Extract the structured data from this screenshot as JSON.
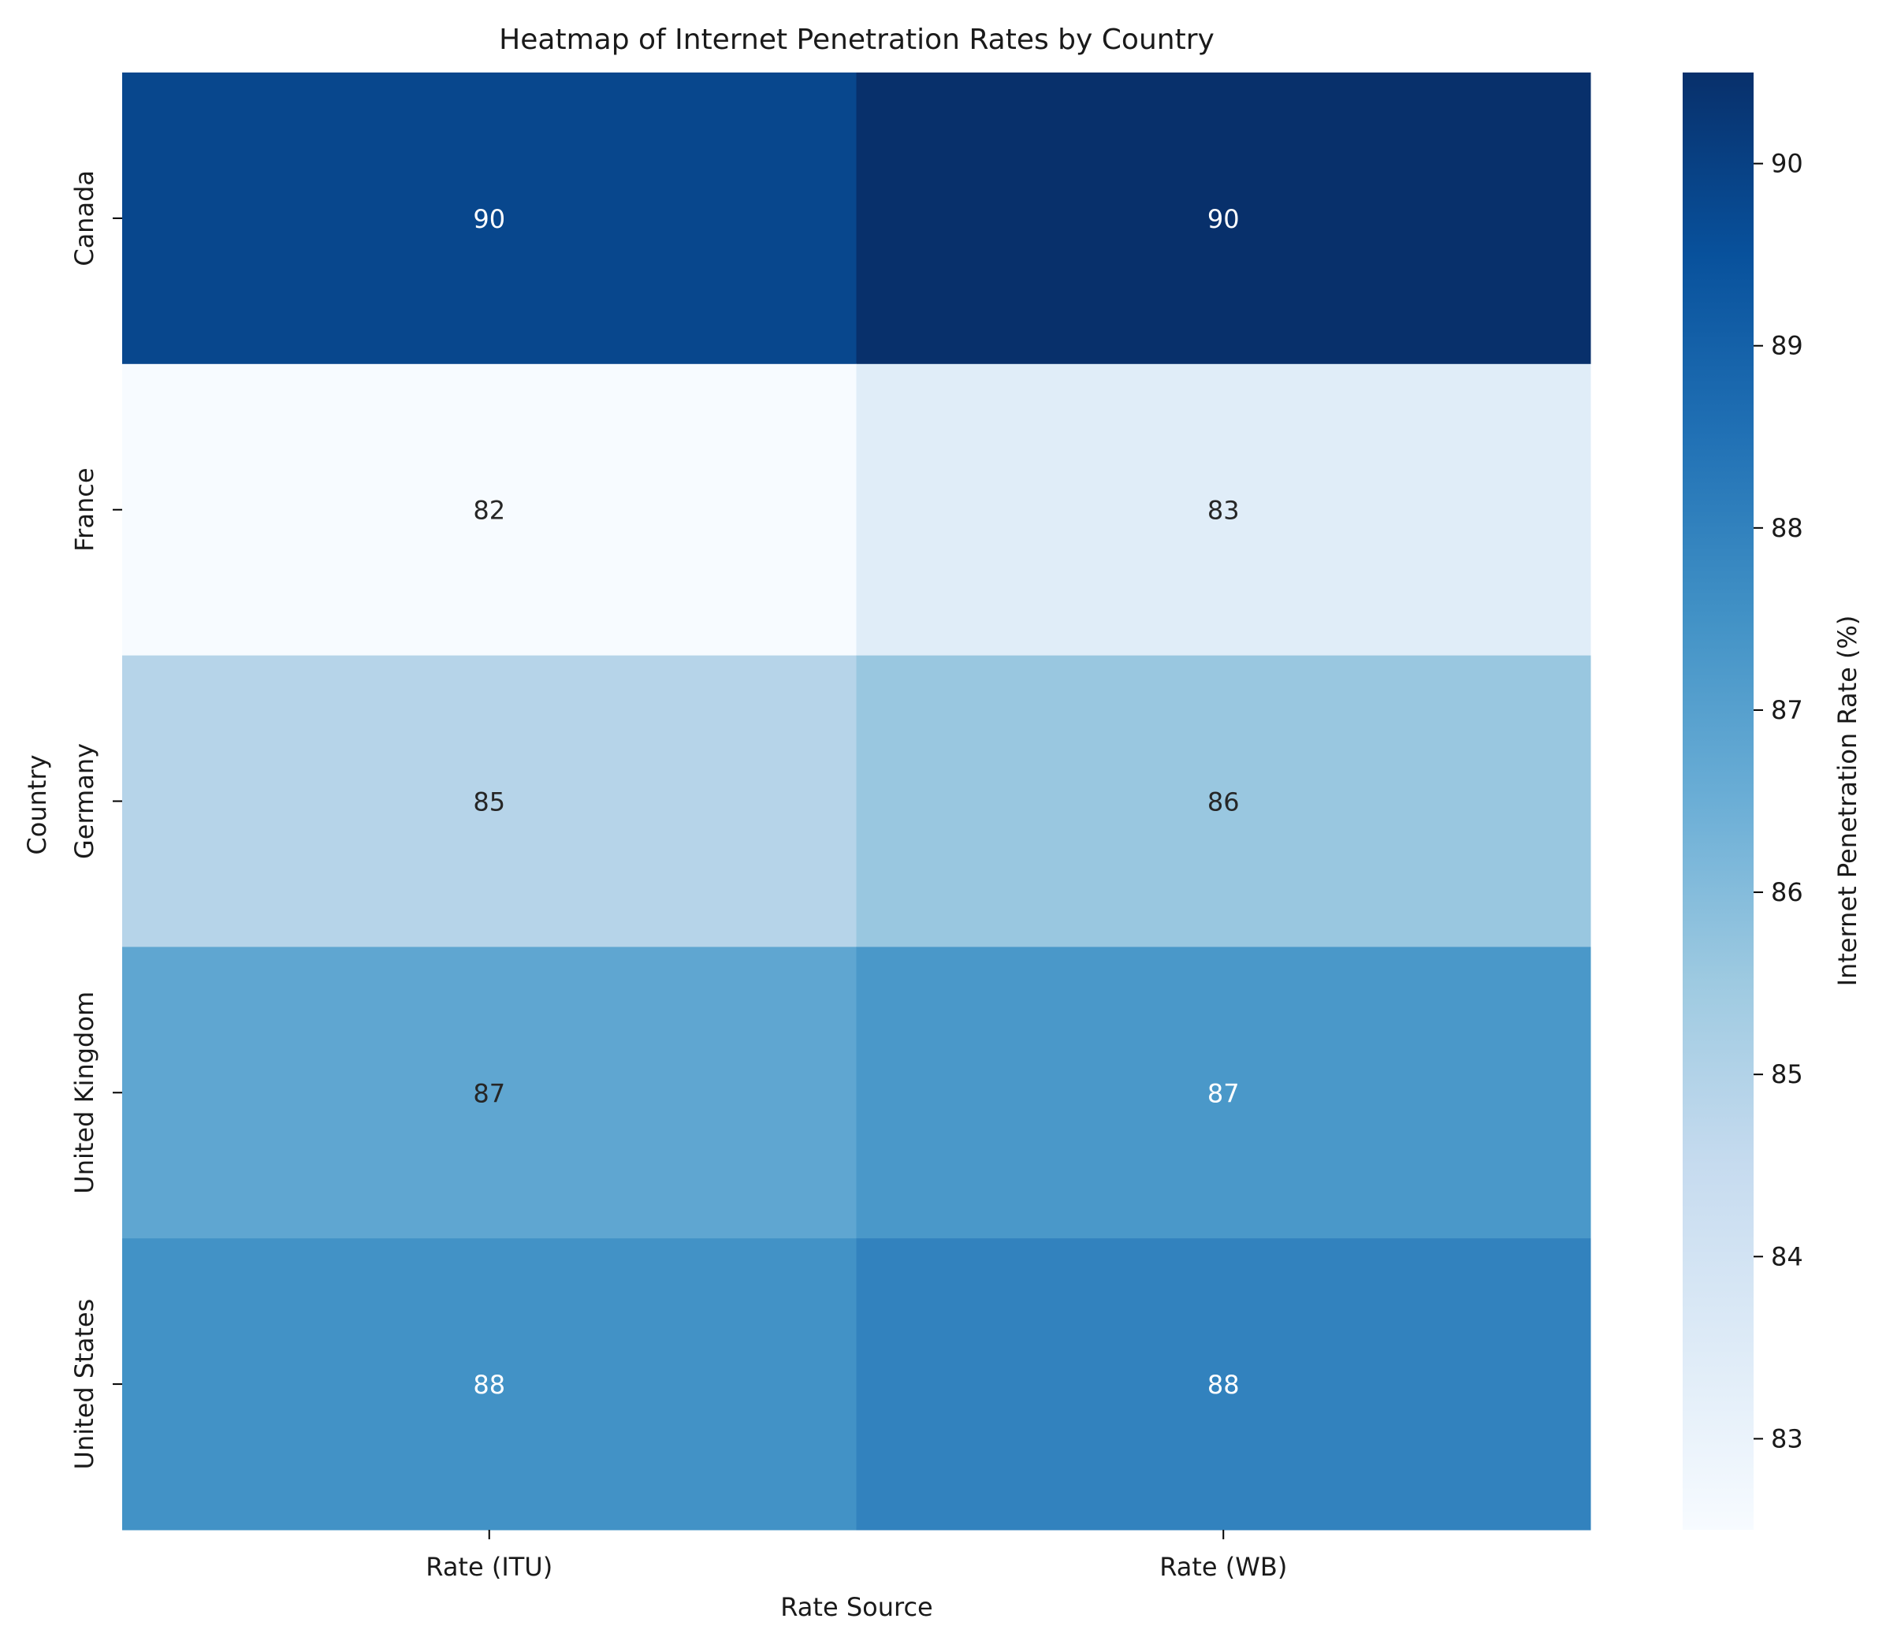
{
  "chart_data": {
    "type": "heatmap",
    "title": "Heatmap of Internet Penetration Rates by Country",
    "xlabel": "Rate Source",
    "ylabel": "Country",
    "x_categories": [
      "Rate (ITU)",
      "Rate (WB)"
    ],
    "y_categories": [
      "Canada",
      "France",
      "Germany",
      "United Kingdom",
      "United States"
    ],
    "values": [
      [
        89.8,
        90.5
      ],
      [
        82.5,
        83.4
      ],
      [
        84.9,
        85.6
      ],
      [
        86.8,
        87.3
      ],
      [
        87.5,
        88.0
      ]
    ],
    "cell_labels": [
      [
        "90",
        "90"
      ],
      [
        "82",
        "83"
      ],
      [
        "85",
        "86"
      ],
      [
        "87",
        "87"
      ],
      [
        "88",
        "88"
      ]
    ],
    "colorbar": {
      "label": "Internet Penetration Rate (%)",
      "range": [
        82.5,
        90.5
      ],
      "ticks": [
        83,
        84,
        85,
        86,
        87,
        88,
        89,
        90
      ],
      "colormap": "Blues",
      "colors": [
        "#f7fbff",
        "#deebf7",
        "#c6dbef",
        "#9ecae1",
        "#6baed6",
        "#4292c6",
        "#2171b5",
        "#08519c",
        "#08306b"
      ]
    },
    "grid": false
  }
}
